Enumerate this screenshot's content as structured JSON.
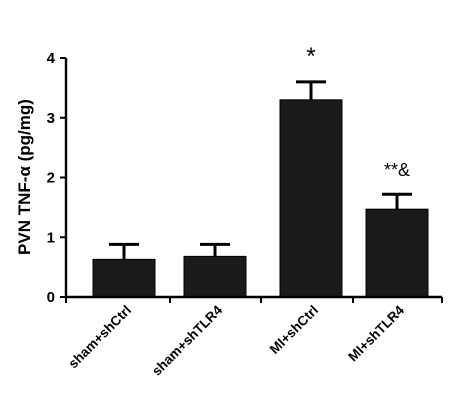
{
  "chart_data": {
    "type": "bar",
    "categories": [
      "sham+shCtrl",
      "sham+shTLR4",
      "MI+shCtrl",
      "MI+shTLR4"
    ],
    "values": [
      0.63,
      0.68,
      3.3,
      1.47
    ],
    "errors": [
      0.25,
      0.2,
      0.3,
      0.25
    ],
    "annotations": [
      "",
      "",
      "*",
      "**&"
    ],
    "ylabel": "PVN TNF-α  (pg/mg)",
    "xlabel": "",
    "title": "",
    "ylim": [
      0,
      4
    ],
    "yticks": [
      "0",
      "1",
      "2",
      "3",
      "4"
    ],
    "grid": false,
    "bar_color": "#1a1a1a"
  }
}
